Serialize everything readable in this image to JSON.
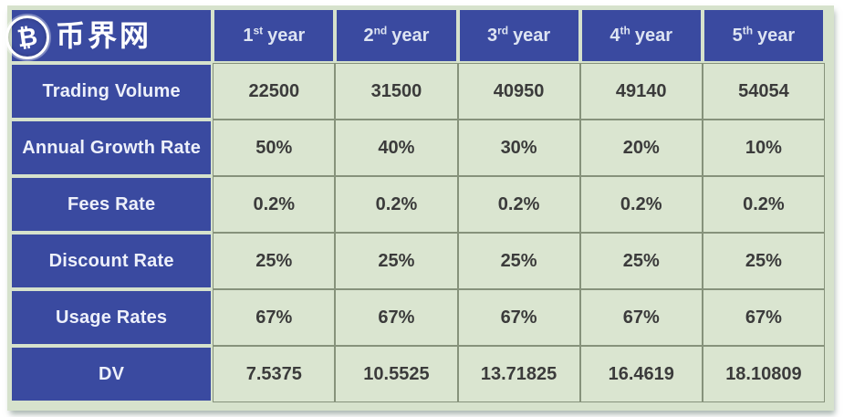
{
  "logo": {
    "brand_text": "币界网",
    "coin_symbol": "₿"
  },
  "table": {
    "columns": [
      {
        "num": "1",
        "suffix": "st",
        "word": "year"
      },
      {
        "num": "2",
        "suffix": "nd",
        "word": "year"
      },
      {
        "num": "3",
        "suffix": "rd",
        "word": "year"
      },
      {
        "num": "4",
        "suffix": "th",
        "word": "year"
      },
      {
        "num": "5",
        "suffix": "th",
        "word": "year"
      }
    ],
    "rows": [
      {
        "label": "Trading Volume",
        "values": [
          "22500",
          "31500",
          "40950",
          "49140",
          "54054"
        ]
      },
      {
        "label": "Annual Growth Rate",
        "values": [
          "50%",
          "40%",
          "30%",
          "20%",
          "10%"
        ]
      },
      {
        "label": "Fees Rate",
        "values": [
          "0.2%",
          "0.2%",
          "0.2%",
          "0.2%",
          "0.2%"
        ]
      },
      {
        "label": "Discount Rate",
        "values": [
          "25%",
          "25%",
          "25%",
          "25%",
          "25%"
        ]
      },
      {
        "label": "Usage Rates",
        "values": [
          "67%",
          "67%",
          "67%",
          "67%",
          "67%"
        ]
      },
      {
        "label": "DV",
        "values": [
          "7.5375",
          "10.5525",
          "13.71825",
          "16.4619",
          "18.10809"
        ]
      }
    ]
  },
  "colors": {
    "header_blue": "#3a4aa0",
    "cell_green": "#dae5d0",
    "panel_green": "#d6e2cc",
    "grid_border": "#86927b"
  },
  "chart_data": {
    "type": "table",
    "title": "Token valuation table (币界网)",
    "categories": [
      "1st year",
      "2nd year",
      "3rd year",
      "4th year",
      "5th year"
    ],
    "series": [
      {
        "name": "Trading Volume",
        "values": [
          22500,
          31500,
          40950,
          49140,
          54054
        ]
      },
      {
        "name": "Annual Growth Rate",
        "values": [
          "50%",
          "40%",
          "30%",
          "20%",
          "10%"
        ]
      },
      {
        "name": "Fees Rate",
        "values": [
          "0.2%",
          "0.2%",
          "0.2%",
          "0.2%",
          "0.2%"
        ]
      },
      {
        "name": "Discount Rate",
        "values": [
          "25%",
          "25%",
          "25%",
          "25%",
          "25%"
        ]
      },
      {
        "name": "Usage Rates",
        "values": [
          "67%",
          "67%",
          "67%",
          "67%",
          "67%"
        ]
      },
      {
        "name": "DV",
        "values": [
          7.5375,
          10.5525,
          13.71825,
          16.4619,
          18.10809
        ]
      }
    ],
    "layout": {
      "header_row": true,
      "header_column": true,
      "grid": true,
      "legend_position": "none"
    }
  }
}
